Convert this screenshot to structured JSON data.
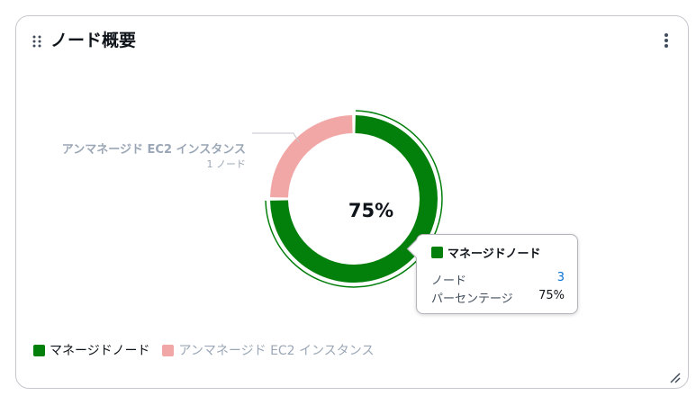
{
  "widget": {
    "title": "ノード概要"
  },
  "colors": {
    "managed": "#037f0c",
    "unmanaged": "#f2a7a7",
    "text_dim": "#9ba7b6"
  },
  "chart_data": {
    "type": "pie",
    "variant": "donut",
    "center_label": "75%",
    "segments": [
      {
        "name": "マネージドノード",
        "value": 3,
        "percent": 75,
        "color": "#037f0c",
        "highlighted": true
      },
      {
        "name": "アンマネージド EC2 インスタンス",
        "value": 1,
        "percent": 25,
        "color": "#f2a7a7",
        "highlighted": false
      }
    ],
    "callout": {
      "label": "アンマネージド EC2 インスタンス",
      "sub": "1 ノード"
    },
    "tooltip": {
      "title": "マネージドノード",
      "rows": [
        {
          "key": "ノード",
          "value": "3"
        },
        {
          "key": "パーセンテージ",
          "value": "75%"
        }
      ]
    },
    "legend": [
      "マネージドノード",
      "アンマネージド EC2 インスタンス"
    ],
    "legend_placement": "bottom-left"
  }
}
